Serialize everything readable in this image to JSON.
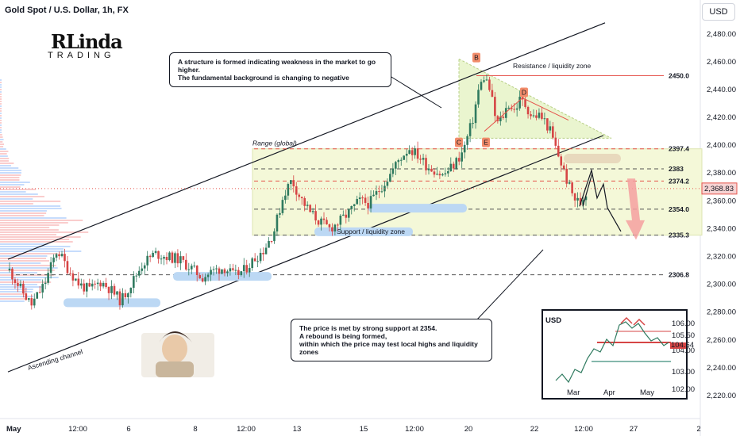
{
  "header": {
    "symbol": "Gold Spot / U.S. Dollar, 1h, FX",
    "currency_button": "USD"
  },
  "logo": {
    "main": "RLinda",
    "sub": "TRADING"
  },
  "callouts": {
    "top": [
      "A structure is formed indicating weakness in the market to go higher.",
      "The fundamental background is changing to negative"
    ],
    "bottom": [
      "The price is met by strong support at 2354.",
      "A rebound is being formed,",
      "within which the price may test local highs and liquidity zones"
    ]
  },
  "annotations": {
    "range": "Range (global)",
    "resistance": "Resistance / liquidity zone",
    "support": "Support / liquidity zone",
    "channel": "Ascending channel"
  },
  "markers": [
    "B",
    "D",
    "C",
    "E"
  ],
  "inset": {
    "title": "USD",
    "x_labels": [
      "Mar",
      "Apr",
      "May"
    ],
    "y_labels": [
      "106.00",
      "105.50",
      "104.00",
      "103.00",
      "102.00"
    ],
    "current": "104.64"
  },
  "chart_data": {
    "type": "candlestick",
    "x_labels": [
      "May",
      "12:00",
      "6",
      "8",
      "12:00",
      "13",
      "15",
      "12:00",
      "20",
      "22",
      "12:00",
      "27",
      "2"
    ],
    "y_ticks": [
      2220,
      2240,
      2260,
      2280,
      2300,
      2320,
      2340,
      2360,
      2380,
      2400,
      2420,
      2440,
      2460,
      2480
    ],
    "ylim": [
      2208,
      2493
    ],
    "current_price": "2,368.83",
    "levels": [
      {
        "label": "2450.0",
        "value": 2450.0,
        "color": "#e5534b",
        "style": "solid"
      },
      {
        "label": "2397.4",
        "value": 2397.4,
        "color": "#e5534b",
        "style": "dashed"
      },
      {
        "label": "2383",
        "value": 2383,
        "color": "#555555",
        "style": "dashed"
      },
      {
        "label": "2374.2",
        "value": 2374.2,
        "color": "#e5534b",
        "style": "dashed"
      },
      {
        "label": "2354.0",
        "value": 2354.0,
        "color": "#555555",
        "style": "dashed"
      },
      {
        "label": "2335.3",
        "value": 2335.3,
        "color": "#555555",
        "style": "dashed"
      },
      {
        "label": "2306.8",
        "value": 2306.8,
        "color": "#555555",
        "style": "dashed"
      }
    ],
    "path_points": [
      [
        0,
        2310
      ],
      [
        10,
        2298
      ],
      [
        22,
        2285
      ],
      [
        35,
        2300
      ],
      [
        48,
        2325
      ],
      [
        58,
        2312
      ],
      [
        70,
        2300
      ],
      [
        80,
        2296
      ],
      [
        92,
        2302
      ],
      [
        102,
        2296
      ],
      [
        112,
        2288
      ],
      [
        122,
        2300
      ],
      [
        134,
        2315
      ],
      [
        146,
        2322
      ],
      [
        158,
        2320
      ],
      [
        170,
        2318
      ],
      [
        182,
        2312
      ],
      [
        194,
        2305
      ],
      [
        206,
        2310
      ],
      [
        216,
        2312
      ],
      [
        226,
        2306
      ],
      [
        236,
        2310
      ],
      [
        246,
        2318
      ],
      [
        256,
        2325
      ],
      [
        266,
        2338
      ],
      [
        276,
        2365
      ],
      [
        284,
        2375
      ],
      [
        292,
        2363
      ],
      [
        302,
        2352
      ],
      [
        312,
        2345
      ],
      [
        322,
        2340
      ],
      [
        332,
        2345
      ],
      [
        342,
        2352
      ],
      [
        352,
        2360
      ],
      [
        362,
        2358
      ],
      [
        372,
        2368
      ],
      [
        382,
        2378
      ],
      [
        392,
        2390
      ],
      [
        402,
        2398
      ],
      [
        412,
        2392
      ],
      [
        420,
        2385
      ],
      [
        428,
        2382
      ],
      [
        436,
        2378
      ],
      [
        446,
        2385
      ],
      [
        456,
        2395
      ],
      [
        466,
        2418
      ],
      [
        472,
        2440
      ],
      [
        478,
        2450
      ],
      [
        484,
        2438
      ],
      [
        490,
        2415
      ],
      [
        496,
        2420
      ],
      [
        502,
        2430
      ],
      [
        508,
        2425
      ],
      [
        514,
        2433
      ],
      [
        520,
        2428
      ],
      [
        526,
        2420
      ],
      [
        532,
        2422
      ],
      [
        538,
        2418
      ],
      [
        544,
        2410
      ],
      [
        550,
        2397
      ],
      [
        556,
        2385
      ],
      [
        562,
        2372
      ],
      [
        568,
        2362
      ],
      [
        574,
        2358
      ],
      [
        580,
        2366
      ]
    ]
  }
}
